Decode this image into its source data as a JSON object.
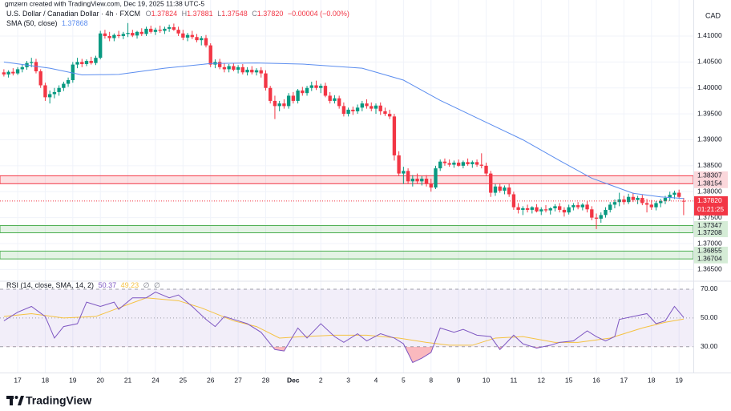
{
  "chart_data": {
    "type": "candlestick",
    "watermark": "gmzern created with TradingView.com, Dec 19, 2025 11:38 UTC-5",
    "title": "U.S. Dollar / Canadian Dollar · 4h · FXCM",
    "legend": {
      "labels": [
        "O",
        "H",
        "L",
        "C"
      ],
      "values": [
        "1.37824",
        "1.37881",
        "1.37548",
        "1.37820"
      ],
      "change": "−0.00004 (−0.00%)"
    },
    "currency": "CAD",
    "up_color": "#089981",
    "down_color": "#f23645",
    "ylim": [
      1.3629,
      1.4154
    ],
    "yticks": [
      {
        "value": 1.41,
        "label": "1.41000"
      },
      {
        "value": 1.405,
        "label": "1.40500"
      },
      {
        "value": 1.4,
        "label": "1.40000"
      },
      {
        "value": 1.395,
        "label": "1.39500"
      },
      {
        "value": 1.39,
        "label": "1.39000"
      },
      {
        "value": 1.385,
        "label": "1.38500"
      },
      {
        "value": 1.38,
        "label": "1.38000"
      },
      {
        "value": 1.375,
        "label": "1.37500"
      },
      {
        "value": 1.37,
        "label": "1.37000"
      },
      {
        "value": 1.365,
        "label": "1.36500"
      }
    ],
    "grid": true,
    "categories": [
      null,
      null,
      null,
      "17",
      null,
      null,
      null,
      null,
      null,
      "18",
      null,
      null,
      null,
      null,
      null,
      "19",
      null,
      null,
      null,
      null,
      null,
      "20",
      null,
      null,
      null,
      null,
      null,
      "21",
      null,
      null,
      null,
      null,
      null,
      "24",
      null,
      null,
      null,
      null,
      null,
      "25",
      null,
      null,
      null,
      null,
      null,
      "26",
      null,
      null,
      null,
      null,
      null,
      "27",
      null,
      null,
      null,
      null,
      null,
      "28",
      null,
      null,
      null,
      null,
      null,
      "Dec",
      null,
      null,
      null,
      null,
      null,
      "2",
      null,
      null,
      null,
      null,
      null,
      "3",
      null,
      null,
      null,
      null,
      null,
      "4",
      null,
      null,
      null,
      null,
      null,
      "5",
      null,
      null,
      null,
      null,
      null,
      "8",
      null,
      null,
      null,
      null,
      null,
      "9",
      null,
      null,
      null,
      null,
      null,
      "10",
      null,
      null,
      null,
      null,
      null,
      "11",
      null,
      null,
      null,
      null,
      null,
      "12",
      null,
      null,
      null,
      null,
      null,
      "15",
      null,
      null,
      null,
      null,
      null,
      "16",
      null,
      null,
      null,
      null,
      null,
      "17",
      null,
      null,
      null,
      null,
      null,
      "18",
      null,
      null,
      null,
      null,
      null,
      "19",
      null
    ],
    "ohlc": [
      [
        1.403,
        1.4036,
        1.4022,
        1.4026
      ],
      [
        1.4026,
        1.4034,
        1.402,
        1.4031
      ],
      [
        1.4031,
        1.4038,
        1.4024,
        1.4028
      ],
      [
        1.4028,
        1.404,
        1.4025,
        1.4036
      ],
      [
        1.4036,
        1.4045,
        1.403,
        1.404
      ],
      [
        1.404,
        1.4052,
        1.4035,
        1.4048
      ],
      [
        1.4048,
        1.4058,
        1.404,
        1.405
      ],
      [
        1.405,
        1.4056,
        1.4028,
        1.4032
      ],
      [
        1.4032,
        1.4036,
        1.4,
        1.4005
      ],
      [
        1.4005,
        1.401,
        1.3975,
        1.3982
      ],
      [
        1.3982,
        1.3995,
        1.397,
        1.3988
      ],
      [
        1.3988,
        1.4,
        1.398,
        1.3992
      ],
      [
        1.3992,
        1.4005,
        1.3985,
        1.4
      ],
      [
        1.4,
        1.4012,
        1.3994,
        1.4008
      ],
      [
        1.4008,
        1.402,
        1.4002,
        1.4015
      ],
      [
        1.4015,
        1.405,
        1.401,
        1.4045
      ],
      [
        1.4045,
        1.4058,
        1.4038,
        1.405
      ],
      [
        1.405,
        1.4056,
        1.404,
        1.4046
      ],
      [
        1.4046,
        1.4055,
        1.4042,
        1.4052
      ],
      [
        1.4052,
        1.406,
        1.4045,
        1.4048
      ],
      [
        1.4048,
        1.4062,
        1.4044,
        1.4058
      ],
      [
        1.4058,
        1.411,
        1.4055,
        1.4105
      ],
      [
        1.4105,
        1.4112,
        1.4095,
        1.41
      ],
      [
        1.41,
        1.4108,
        1.409,
        1.4096
      ],
      [
        1.4096,
        1.4105,
        1.409,
        1.4102
      ],
      [
        1.4102,
        1.411,
        1.4096,
        1.41
      ],
      [
        1.41,
        1.4108,
        1.4094,
        1.4104
      ],
      [
        1.4104,
        1.4125,
        1.4098,
        1.4106
      ],
      [
        1.4106,
        1.4112,
        1.4098,
        1.4101
      ],
      [
        1.4101,
        1.411,
        1.4095,
        1.4108
      ],
      [
        1.4108,
        1.4115,
        1.41,
        1.4104
      ],
      [
        1.4104,
        1.4118,
        1.41,
        1.4114
      ],
      [
        1.4114,
        1.412,
        1.4105,
        1.4108
      ],
      [
        1.4108,
        1.4116,
        1.4102,
        1.4112
      ],
      [
        1.4112,
        1.412,
        1.4106,
        1.411
      ],
      [
        1.411,
        1.4118,
        1.4104,
        1.4114
      ],
      [
        1.4114,
        1.4122,
        1.4108,
        1.4117
      ],
      [
        1.4117,
        1.4124,
        1.411,
        1.4112
      ],
      [
        1.4112,
        1.4118,
        1.41,
        1.4105
      ],
      [
        1.4105,
        1.4112,
        1.4092,
        1.4097
      ],
      [
        1.4097,
        1.4106,
        1.409,
        1.4102
      ],
      [
        1.4102,
        1.411,
        1.4094,
        1.4098
      ],
      [
        1.4098,
        1.4104,
        1.4088,
        1.4092
      ],
      [
        1.4092,
        1.41,
        1.4082,
        1.4096
      ],
      [
        1.4096,
        1.4102,
        1.4078,
        1.4082
      ],
      [
        1.4082,
        1.4086,
        1.404,
        1.4045
      ],
      [
        1.4045,
        1.4055,
        1.4038,
        1.405
      ],
      [
        1.405,
        1.4056,
        1.4036,
        1.404
      ],
      [
        1.404,
        1.4048,
        1.403,
        1.4036
      ],
      [
        1.4036,
        1.4046,
        1.403,
        1.4042
      ],
      [
        1.4042,
        1.4048,
        1.4032,
        1.4035
      ],
      [
        1.4035,
        1.4044,
        1.4028,
        1.404
      ],
      [
        1.404,
        1.4046,
        1.4026,
        1.403
      ],
      [
        1.403,
        1.404,
        1.4024,
        1.4035
      ],
      [
        1.4035,
        1.4042,
        1.4026,
        1.403
      ],
      [
        1.403,
        1.4038,
        1.4024,
        1.4034
      ],
      [
        1.4034,
        1.404,
        1.402,
        1.4028
      ],
      [
        1.4028,
        1.4034,
        1.3995,
        1.4
      ],
      [
        1.4,
        1.4004,
        1.397,
        1.3975
      ],
      [
        1.3975,
        1.3985,
        1.394,
        1.3965
      ],
      [
        1.3965,
        1.3975,
        1.3955,
        1.397
      ],
      [
        1.397,
        1.3978,
        1.396,
        1.3965
      ],
      [
        1.3965,
        1.399,
        1.396,
        1.3985
      ],
      [
        1.3985,
        1.3992,
        1.397,
        1.3975
      ],
      [
        1.3975,
        1.3998,
        1.397,
        1.3995
      ],
      [
        1.3995,
        1.4002,
        1.3985,
        1.399
      ],
      [
        1.399,
        1.4004,
        1.3985,
        1.4
      ],
      [
        1.4,
        1.4012,
        1.3994,
        1.4005
      ],
      [
        1.4005,
        1.4014,
        1.3996,
        1.4
      ],
      [
        1.4,
        1.4008,
        1.399,
        1.4004
      ],
      [
        1.4004,
        1.401,
        1.3982,
        1.3985
      ],
      [
        1.3985,
        1.3992,
        1.397,
        1.3975
      ],
      [
        1.3975,
        1.3986,
        1.397,
        1.398
      ],
      [
        1.398,
        1.3985,
        1.396,
        1.3965
      ],
      [
        1.3965,
        1.3972,
        1.3945,
        1.395
      ],
      [
        1.395,
        1.3962,
        1.3945,
        1.3958
      ],
      [
        1.3958,
        1.3964,
        1.3948,
        1.3955
      ],
      [
        1.3955,
        1.3968,
        1.395,
        1.3962
      ],
      [
        1.3962,
        1.3975,
        1.3955,
        1.397
      ],
      [
        1.397,
        1.3978,
        1.396,
        1.3965
      ],
      [
        1.3965,
        1.3972,
        1.3955,
        1.396
      ],
      [
        1.396,
        1.397,
        1.395,
        1.3966
      ],
      [
        1.3966,
        1.3972,
        1.3948,
        1.3955
      ],
      [
        1.3955,
        1.3962,
        1.3946,
        1.395
      ],
      [
        1.395,
        1.3958,
        1.394,
        1.3945
      ],
      [
        1.3945,
        1.395,
        1.386,
        1.387
      ],
      [
        1.387,
        1.3878,
        1.383,
        1.3835
      ],
      [
        1.3835,
        1.3848,
        1.3815,
        1.384
      ],
      [
        1.384,
        1.3845,
        1.3815,
        1.382
      ],
      [
        1.382,
        1.3832,
        1.381,
        1.3825
      ],
      [
        1.3825,
        1.3835,
        1.3815,
        1.382
      ],
      [
        1.382,
        1.383,
        1.3812,
        1.3825
      ],
      [
        1.3825,
        1.3832,
        1.381,
        1.3815
      ],
      [
        1.3815,
        1.3825,
        1.38,
        1.3808
      ],
      [
        1.3808,
        1.385,
        1.3805,
        1.3845
      ],
      [
        1.3845,
        1.3862,
        1.384,
        1.3858
      ],
      [
        1.3858,
        1.3864,
        1.385,
        1.3855
      ],
      [
        1.3855,
        1.3862,
        1.3848,
        1.3852
      ],
      [
        1.3852,
        1.386,
        1.3846,
        1.3856
      ],
      [
        1.3856,
        1.3862,
        1.3848,
        1.385
      ],
      [
        1.385,
        1.386,
        1.3845,
        1.3857
      ],
      [
        1.3857,
        1.3864,
        1.385,
        1.3853
      ],
      [
        1.3853,
        1.386,
        1.3846,
        1.3857
      ],
      [
        1.3857,
        1.3862,
        1.3848,
        1.3852
      ],
      [
        1.3852,
        1.3874,
        1.3845,
        1.385
      ],
      [
        1.385,
        1.3856,
        1.383,
        1.3835
      ],
      [
        1.3835,
        1.384,
        1.379,
        1.3798
      ],
      [
        1.3798,
        1.3815,
        1.3792,
        1.381
      ],
      [
        1.381,
        1.3816,
        1.3798,
        1.3802
      ],
      [
        1.3802,
        1.3812,
        1.3795,
        1.3808
      ],
      [
        1.3808,
        1.3815,
        1.379,
        1.3795
      ],
      [
        1.3795,
        1.38,
        1.3765,
        1.377
      ],
      [
        1.377,
        1.3778,
        1.3758,
        1.3765
      ],
      [
        1.3765,
        1.3772,
        1.3755,
        1.3768
      ],
      [
        1.3768,
        1.3775,
        1.376,
        1.3765
      ],
      [
        1.3765,
        1.3772,
        1.3758,
        1.377
      ],
      [
        1.377,
        1.3776,
        1.376,
        1.3762
      ],
      [
        1.3762,
        1.377,
        1.3755,
        1.3766
      ],
      [
        1.3766,
        1.3774,
        1.376,
        1.3764
      ],
      [
        1.3764,
        1.377,
        1.3756,
        1.3768
      ],
      [
        1.3768,
        1.3776,
        1.3762,
        1.3772
      ],
      [
        1.3772,
        1.3778,
        1.376,
        1.3765
      ],
      [
        1.3765,
        1.377,
        1.3752,
        1.376
      ],
      [
        1.376,
        1.3775,
        1.3756,
        1.377
      ],
      [
        1.377,
        1.3778,
        1.3764,
        1.3774
      ],
      [
        1.3774,
        1.378,
        1.3766,
        1.377
      ],
      [
        1.377,
        1.3778,
        1.3764,
        1.3775
      ],
      [
        1.3775,
        1.3782,
        1.376,
        1.3766
      ],
      [
        1.3766,
        1.3772,
        1.3745,
        1.375
      ],
      [
        1.375,
        1.3758,
        1.3728,
        1.3748
      ],
      [
        1.3748,
        1.376,
        1.374,
        1.3755
      ],
      [
        1.3755,
        1.377,
        1.375,
        1.3765
      ],
      [
        1.3765,
        1.378,
        1.376,
        1.3775
      ],
      [
        1.3775,
        1.3785,
        1.3768,
        1.378
      ],
      [
        1.378,
        1.3798,
        1.3772,
        1.3785
      ],
      [
        1.3785,
        1.3792,
        1.3775,
        1.378
      ],
      [
        1.378,
        1.3796,
        1.3776,
        1.379
      ],
      [
        1.379,
        1.3798,
        1.378,
        1.3784
      ],
      [
        1.3784,
        1.3792,
        1.3776,
        1.3788
      ],
      [
        1.3788,
        1.3794,
        1.3774,
        1.3778
      ],
      [
        1.3778,
        1.3786,
        1.376,
        1.3775
      ],
      [
        1.3775,
        1.3784,
        1.3765,
        1.377
      ],
      [
        1.377,
        1.3782,
        1.3764,
        1.3778
      ],
      [
        1.3778,
        1.3786,
        1.377,
        1.3782
      ],
      [
        1.3782,
        1.3792,
        1.3776,
        1.3788
      ],
      [
        1.3788,
        1.38,
        1.3782,
        1.3794
      ],
      [
        1.3794,
        1.3802,
        1.3786,
        1.3798
      ],
      [
        1.3798,
        1.3804,
        1.3786,
        1.379
      ],
      [
        1.37824,
        1.37881,
        1.37548,
        1.3782
      ]
    ],
    "sma": {
      "name": "SMA (50, close)",
      "value_label": "1.37868",
      "color": "#5b8def",
      "x": [
        0,
        10,
        17,
        25,
        35,
        45,
        55,
        65,
        78,
        87,
        95,
        104,
        113,
        121,
        128,
        137,
        143,
        148
      ],
      "values": [
        1.405,
        1.4038,
        1.4025,
        1.4026,
        1.4038,
        1.4047,
        1.4048,
        1.4046,
        1.4038,
        1.4015,
        1.3976,
        1.3938,
        1.39,
        1.386,
        1.3826,
        1.3797,
        1.379,
        1.37868
      ]
    },
    "zones": [
      {
        "low": 1.38154,
        "high": 1.38307,
        "color": "#f23645"
      },
      {
        "low": 1.37208,
        "high": 1.37347,
        "color": "#4caf50"
      },
      {
        "low": 1.36704,
        "high": 1.36855,
        "color": "#4caf50"
      }
    ],
    "last_price": {
      "value": 1.3782,
      "label": "1.37820"
    },
    "countdown": "01:21:25",
    "rsi": {
      "title": "RSI (14, close, SMA, 14, 2)",
      "legend_values": [
        "50.37",
        "49.23",
        "∅",
        "∅"
      ],
      "color": "#7e57c2",
      "ma_color": "#f5c242",
      "ylim": [
        12,
        75
      ],
      "yticks": [
        {
          "value": 70,
          "label": "70.00"
        },
        {
          "value": 50,
          "label": "50.00"
        },
        {
          "value": 30,
          "label": "30.00"
        }
      ],
      "band": [
        30,
        70
      ],
      "x": [
        0,
        3,
        6,
        9,
        11,
        13,
        16,
        18,
        21,
        24,
        25,
        28,
        31,
        33,
        36,
        38,
        41,
        44,
        46,
        48,
        51,
        53,
        56,
        59,
        61,
        64,
        66,
        69,
        72,
        74,
        77,
        79,
        82,
        85,
        87,
        89,
        91,
        93,
        95,
        98,
        100,
        103,
        106,
        108,
        111,
        113,
        116,
        119,
        121,
        124,
        127,
        129,
        131,
        133,
        134,
        137,
        140,
        142,
        144,
        146,
        148
      ],
      "values": [
        48,
        54,
        58,
        51,
        36,
        44,
        46,
        61,
        58,
        61,
        56,
        64,
        64,
        68,
        64,
        66,
        58,
        49,
        44,
        51,
        48,
        46,
        40,
        28,
        27,
        43,
        36,
        46,
        37,
        33,
        39,
        34,
        39,
        36,
        32,
        19,
        22,
        26,
        43,
        40,
        42,
        38,
        37,
        28,
        38,
        32,
        29,
        31,
        33,
        34,
        41,
        37,
        34,
        37,
        49,
        51,
        53,
        46,
        48,
        58,
        50.37
      ],
      "ma_x": [
        0,
        6,
        13,
        20,
        25,
        31,
        38,
        43,
        50,
        55,
        60,
        65,
        72,
        79,
        86,
        92,
        97,
        102,
        107,
        113,
        120,
        125,
        132,
        139,
        144,
        148
      ],
      "ma_values": [
        51,
        53,
        50,
        51,
        57,
        64,
        62,
        57,
        48,
        44,
        36,
        37,
        38,
        38,
        36,
        33,
        31,
        31,
        36,
        37,
        33,
        33,
        36,
        43,
        47,
        49.23
      ]
    },
    "brand": "TradingView"
  }
}
